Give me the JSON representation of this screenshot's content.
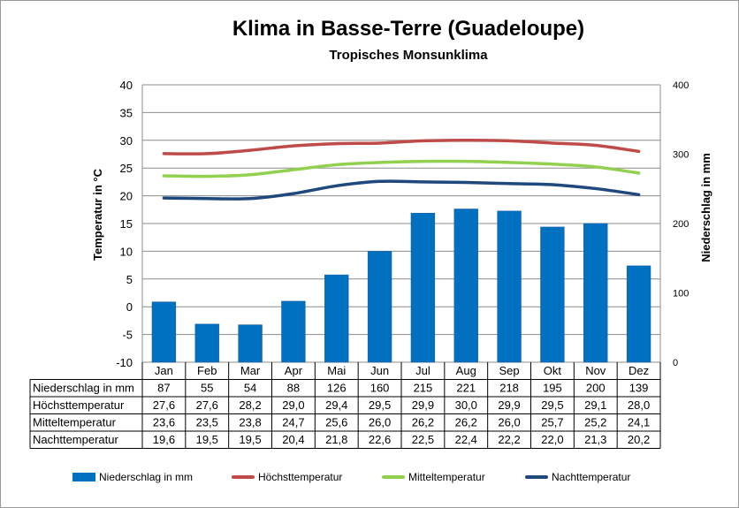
{
  "chart_data": {
    "type": "bar",
    "title": "Klima in Basse-Terre (Guadeloupe)",
    "subtitle": "Tropisches Monsunklima",
    "ylabel": "Temperatur in °C",
    "y2label": "Niederschlag in mm",
    "ylim": [
      -10,
      40
    ],
    "y_ticks": [
      "40",
      "35",
      "30",
      "25",
      "20",
      "15",
      "10",
      "5",
      "0",
      "-5",
      "-10"
    ],
    "y2lim": [
      0,
      400
    ],
    "y2_ticks": [
      "400",
      "300",
      "200",
      "100",
      "0"
    ],
    "grid": true,
    "legend_position": "bottom",
    "categories": [
      "Jan",
      "Feb",
      "Mar",
      "Apr",
      "Mai",
      "Jun",
      "Jul",
      "Aug",
      "Sep",
      "Okt",
      "Nov",
      "Dez"
    ],
    "series": [
      {
        "name": "Niederschlag in mm",
        "kind": "bar",
        "axis": "right",
        "color": "#0070C0",
        "values": [
          87,
          55,
          54,
          88,
          126,
          160,
          215,
          221,
          218,
          195,
          200,
          139
        ],
        "display": [
          "87",
          "55",
          "54",
          "88",
          "126",
          "160",
          "215",
          "221",
          "218",
          "195",
          "200",
          "139"
        ]
      },
      {
        "name": "Höchsttemperatur",
        "kind": "line",
        "axis": "left",
        "color": "#BE4B48",
        "values": [
          27.6,
          27.6,
          28.2,
          29.0,
          29.4,
          29.5,
          29.9,
          30.0,
          29.9,
          29.5,
          29.1,
          28.0
        ],
        "display": [
          "27,6",
          "27,6",
          "28,2",
          "29,0",
          "29,4",
          "29,5",
          "29,9",
          "30,0",
          "29,9",
          "29,5",
          "29,1",
          "28,0"
        ]
      },
      {
        "name": "Mitteltemperatur",
        "kind": "line",
        "axis": "left",
        "color": "#92D050",
        "values": [
          23.6,
          23.5,
          23.8,
          24.7,
          25.6,
          26.0,
          26.2,
          26.2,
          26.0,
          25.7,
          25.2,
          24.1
        ],
        "display": [
          "23,6",
          "23,5",
          "23,8",
          "24,7",
          "25,6",
          "26,0",
          "26,2",
          "26,2",
          "26,0",
          "25,7",
          "25,2",
          "24,1"
        ]
      },
      {
        "name": "Nachttemperatur",
        "kind": "line",
        "axis": "left",
        "color": "#1F497D",
        "values": [
          19.6,
          19.5,
          19.5,
          20.4,
          21.8,
          22.6,
          22.5,
          22.4,
          22.2,
          22.0,
          21.3,
          20.2
        ],
        "display": [
          "19,6",
          "19,5",
          "19,5",
          "20,4",
          "21,8",
          "22,6",
          "22,5",
          "22,4",
          "22,2",
          "22,0",
          "21,3",
          "20,2"
        ]
      }
    ]
  }
}
